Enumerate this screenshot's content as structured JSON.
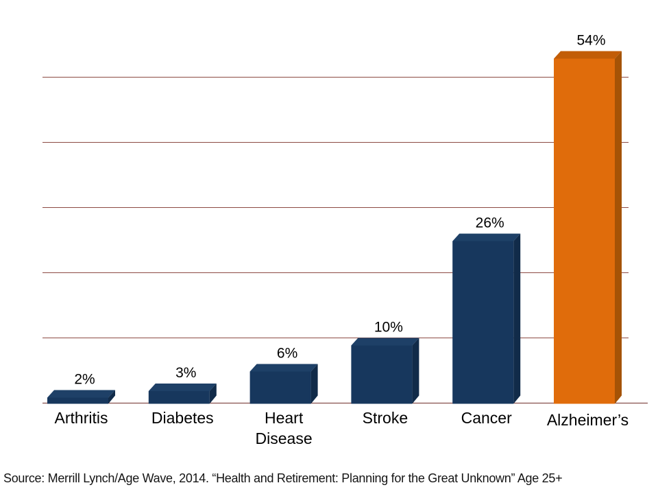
{
  "source_note": "Source: Merrill Lynch/Age Wave, 2014. “Health and Retirement: Planning for the Great Unknown” Age 25+",
  "chart_data": {
    "type": "bar",
    "style": "3d-column",
    "title": "",
    "xlabel": "",
    "ylabel": "",
    "categories": [
      "Arthritis",
      "Diabetes",
      "Heart\nDisease",
      "Stroke",
      "Cancer",
      "Alzheimer’s"
    ],
    "values": [
      2,
      3,
      6,
      10,
      26,
      54
    ],
    "value_labels": [
      "2%",
      "3%",
      "6%",
      "10%",
      "26%",
      "54%"
    ],
    "ylim": [
      0,
      50
    ],
    "gridline_interval": 10,
    "gridline_values": [
      10,
      20,
      30,
      40,
      50
    ],
    "grid_on": true,
    "legend": "none",
    "axis_tick_labels_shown": false,
    "highlight_index": 5,
    "colors": {
      "bar_front": "#17375D",
      "bar_top": "#1E4067",
      "bar_side": "#112B49",
      "highlight_front": "#E06C0B",
      "highlight_top": "#C25D07",
      "highlight_side": "#A55306",
      "gridline": "#8C4A42",
      "axis_line": "#6E2D28",
      "label_text": "#000000"
    }
  }
}
